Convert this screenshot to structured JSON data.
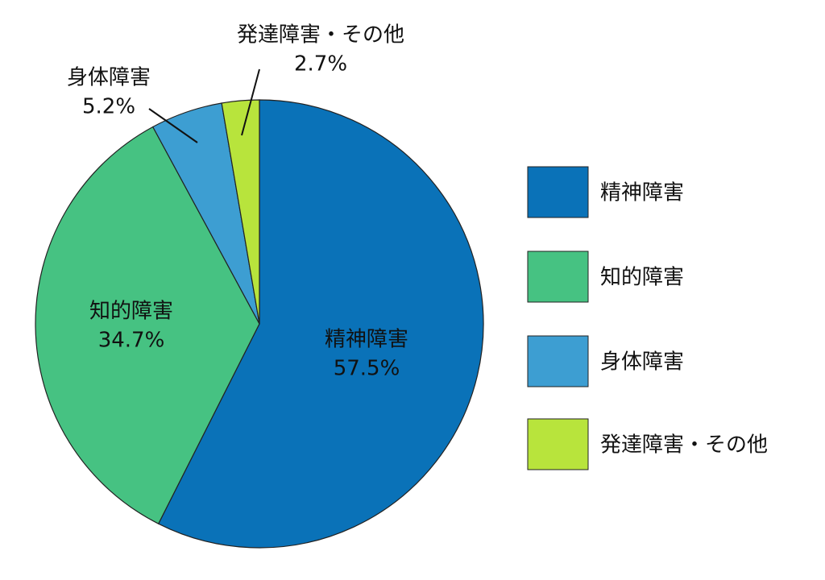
{
  "chart_data": {
    "type": "pie",
    "categories": [
      "精神障害",
      "知的障害",
      "身体障害",
      "発達障害・その他"
    ],
    "values": [
      57.5,
      34.7,
      5.2,
      2.7
    ],
    "value_labels": [
      "57.5%",
      "34.7%",
      "5.2%",
      "2.7%"
    ],
    "colors": [
      "#0a72b8",
      "#46c282",
      "#3d9ed2",
      "#b8e43c"
    ],
    "legend": "right"
  }
}
